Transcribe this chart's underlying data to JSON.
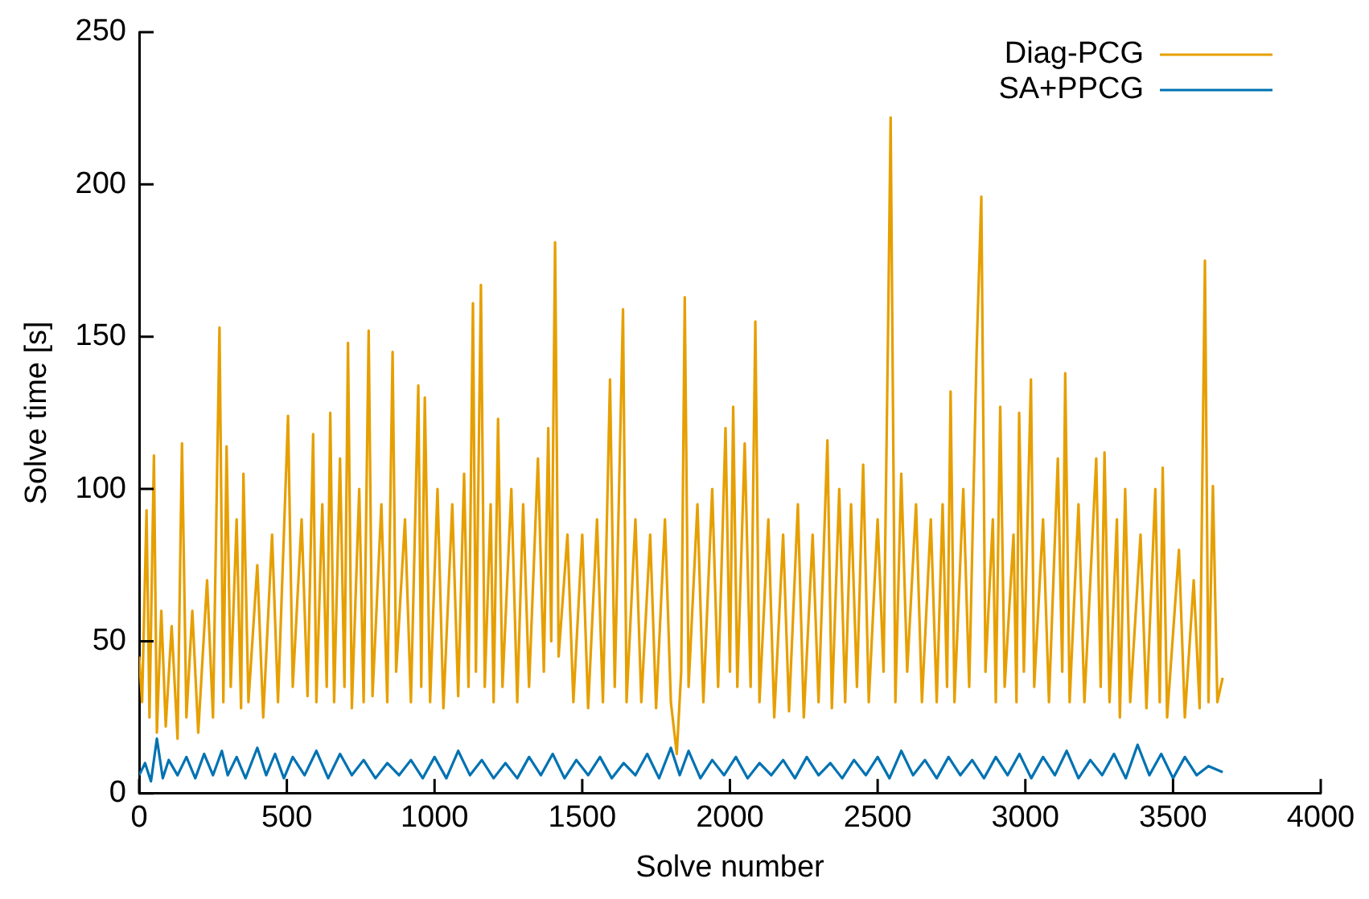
{
  "chart_data": {
    "type": "line",
    "xlabel": "Solve number",
    "ylabel": "Solve time [s]",
    "xlim": [
      0,
      4000
    ],
    "xticks": [
      0,
      500,
      1000,
      1500,
      2000,
      2500,
      3000,
      3500,
      4000
    ],
    "ylim": [
      0,
      250
    ],
    "yticks": [
      0,
      50,
      100,
      150,
      200,
      250
    ],
    "legend": "top right",
    "marker": "none",
    "line_style": "solid",
    "series": [
      {
        "name": "Diag-PCG",
        "color": "#e69f00",
        "x": [
          0,
          10,
          25,
          35,
          50,
          60,
          75,
          90,
          110,
          130,
          145,
          160,
          180,
          200,
          230,
          250,
          272,
          285,
          296,
          310,
          330,
          345,
          353,
          370,
          400,
          420,
          450,
          470,
          504,
          520,
          550,
          570,
          589,
          600,
          620,
          635,
          647,
          660,
          680,
          695,
          707,
          720,
          745,
          760,
          777,
          790,
          820,
          840,
          858,
          870,
          900,
          920,
          945,
          955,
          967,
          985,
          1010,
          1030,
          1060,
          1080,
          1100,
          1115,
          1130,
          1140,
          1157,
          1170,
          1190,
          1200,
          1215,
          1230,
          1260,
          1280,
          1300,
          1320,
          1350,
          1370,
          1385,
          1395,
          1408,
          1420,
          1450,
          1470,
          1500,
          1520,
          1550,
          1570,
          1594,
          1610,
          1638,
          1650,
          1680,
          1700,
          1730,
          1750,
          1780,
          1800,
          1820,
          1835,
          1847,
          1860,
          1890,
          1910,
          1940,
          1960,
          1985,
          2000,
          2011,
          2025,
          2050,
          2070,
          2086,
          2100,
          2130,
          2150,
          2180,
          2200,
          2230,
          2250,
          2280,
          2300,
          2330,
          2345,
          2370,
          2390,
          2410,
          2430,
          2451,
          2470,
          2500,
          2520,
          2535,
          2544,
          2560,
          2580,
          2600,
          2630,
          2650,
          2680,
          2700,
          2720,
          2735,
          2747,
          2760,
          2790,
          2810,
          2835,
          2851,
          2865,
          2890,
          2900,
          2915,
          2930,
          2960,
          2970,
          2979,
          2995,
          3019,
          3030,
          3060,
          3080,
          3110,
          3125,
          3135,
          3150,
          3180,
          3200,
          3240,
          3255,
          3268,
          3285,
          3310,
          3320,
          3338,
          3355,
          3390,
          3410,
          3440,
          3455,
          3465,
          3480,
          3520,
          3540,
          3570,
          3590,
          3608,
          3620,
          3635,
          3650,
          3668
        ],
        "values": [
          45,
          30,
          93,
          25,
          111,
          20,
          60,
          22,
          55,
          18,
          115,
          25,
          60,
          20,
          70,
          25,
          153,
          30,
          114,
          35,
          90,
          28,
          105,
          30,
          75,
          25,
          85,
          30,
          124,
          35,
          90,
          32,
          118,
          30,
          95,
          35,
          125,
          30,
          110,
          35,
          148,
          28,
          100,
          30,
          152,
          32,
          95,
          30,
          145,
          40,
          90,
          30,
          134,
          35,
          130,
          30,
          100,
          28,
          95,
          32,
          105,
          35,
          161,
          40,
          167,
          35,
          95,
          30,
          123,
          35,
          100,
          30,
          95,
          35,
          110,
          40,
          120,
          50,
          181,
          45,
          85,
          30,
          85,
          28,
          90,
          30,
          136,
          35,
          159,
          30,
          90,
          30,
          85,
          28,
          90,
          30,
          13,
          40,
          163,
          35,
          95,
          30,
          100,
          35,
          120,
          40,
          127,
          35,
          115,
          35,
          155,
          30,
          90,
          25,
          85,
          27,
          95,
          25,
          85,
          30,
          116,
          28,
          100,
          30,
          95,
          35,
          108,
          30,
          90,
          40,
          150,
          222,
          30,
          105,
          40,
          95,
          30,
          90,
          30,
          95,
          35,
          132,
          30,
          100,
          35,
          145,
          196,
          40,
          90,
          30,
          127,
          35,
          85,
          30,
          125,
          40,
          136,
          35,
          90,
          30,
          110,
          40,
          138,
          30,
          95,
          30,
          110,
          35,
          112,
          30,
          90,
          25,
          100,
          30,
          85,
          28,
          100,
          30,
          107,
          25,
          80,
          25,
          70,
          28,
          175,
          30,
          101,
          30,
          38
        ]
      },
      {
        "name": "SA+PPCG",
        "color": "#0072b2",
        "x": [
          0,
          20,
          40,
          60,
          80,
          100,
          130,
          160,
          190,
          220,
          250,
          280,
          300,
          330,
          360,
          400,
          430,
          460,
          490,
          520,
          560,
          600,
          640,
          680,
          720,
          760,
          800,
          840,
          880,
          920,
          960,
          1000,
          1040,
          1080,
          1120,
          1160,
          1200,
          1240,
          1280,
          1320,
          1360,
          1400,
          1440,
          1480,
          1520,
          1560,
          1600,
          1640,
          1680,
          1720,
          1760,
          1800,
          1830,
          1860,
          1900,
          1940,
          1980,
          2020,
          2060,
          2100,
          2140,
          2180,
          2220,
          2260,
          2300,
          2340,
          2380,
          2420,
          2460,
          2500,
          2540,
          2580,
          2620,
          2660,
          2700,
          2740,
          2780,
          2820,
          2860,
          2900,
          2940,
          2980,
          3020,
          3060,
          3100,
          3140,
          3180,
          3220,
          3260,
          3300,
          3340,
          3380,
          3420,
          3460,
          3500,
          3540,
          3580,
          3620,
          3668
        ],
        "values": [
          6,
          10,
          4,
          18,
          5,
          11,
          6,
          12,
          5,
          13,
          6,
          14,
          6,
          12,
          5,
          15,
          6,
          13,
          5,
          12,
          6,
          14,
          5,
          13,
          6,
          11,
          5,
          10,
          6,
          11,
          5,
          12,
          5,
          14,
          6,
          11,
          5,
          10,
          5,
          12,
          6,
          13,
          5,
          11,
          6,
          12,
          5,
          10,
          6,
          13,
          5,
          15,
          6,
          14,
          5,
          11,
          6,
          12,
          5,
          10,
          6,
          11,
          5,
          12,
          6,
          10,
          5,
          11,
          6,
          12,
          5,
          14,
          6,
          11,
          5,
          12,
          6,
          11,
          5,
          12,
          6,
          13,
          5,
          12,
          6,
          14,
          5,
          11,
          6,
          13,
          5,
          16,
          6,
          13,
          5,
          12,
          6,
          9,
          7
        ]
      }
    ]
  }
}
